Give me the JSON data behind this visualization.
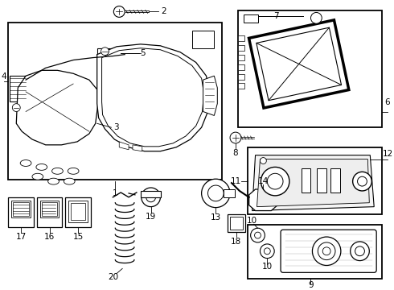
{
  "bg_color": "#ffffff",
  "lc": "#000000",
  "figw": 4.9,
  "figh": 3.6,
  "dpi": 100
}
